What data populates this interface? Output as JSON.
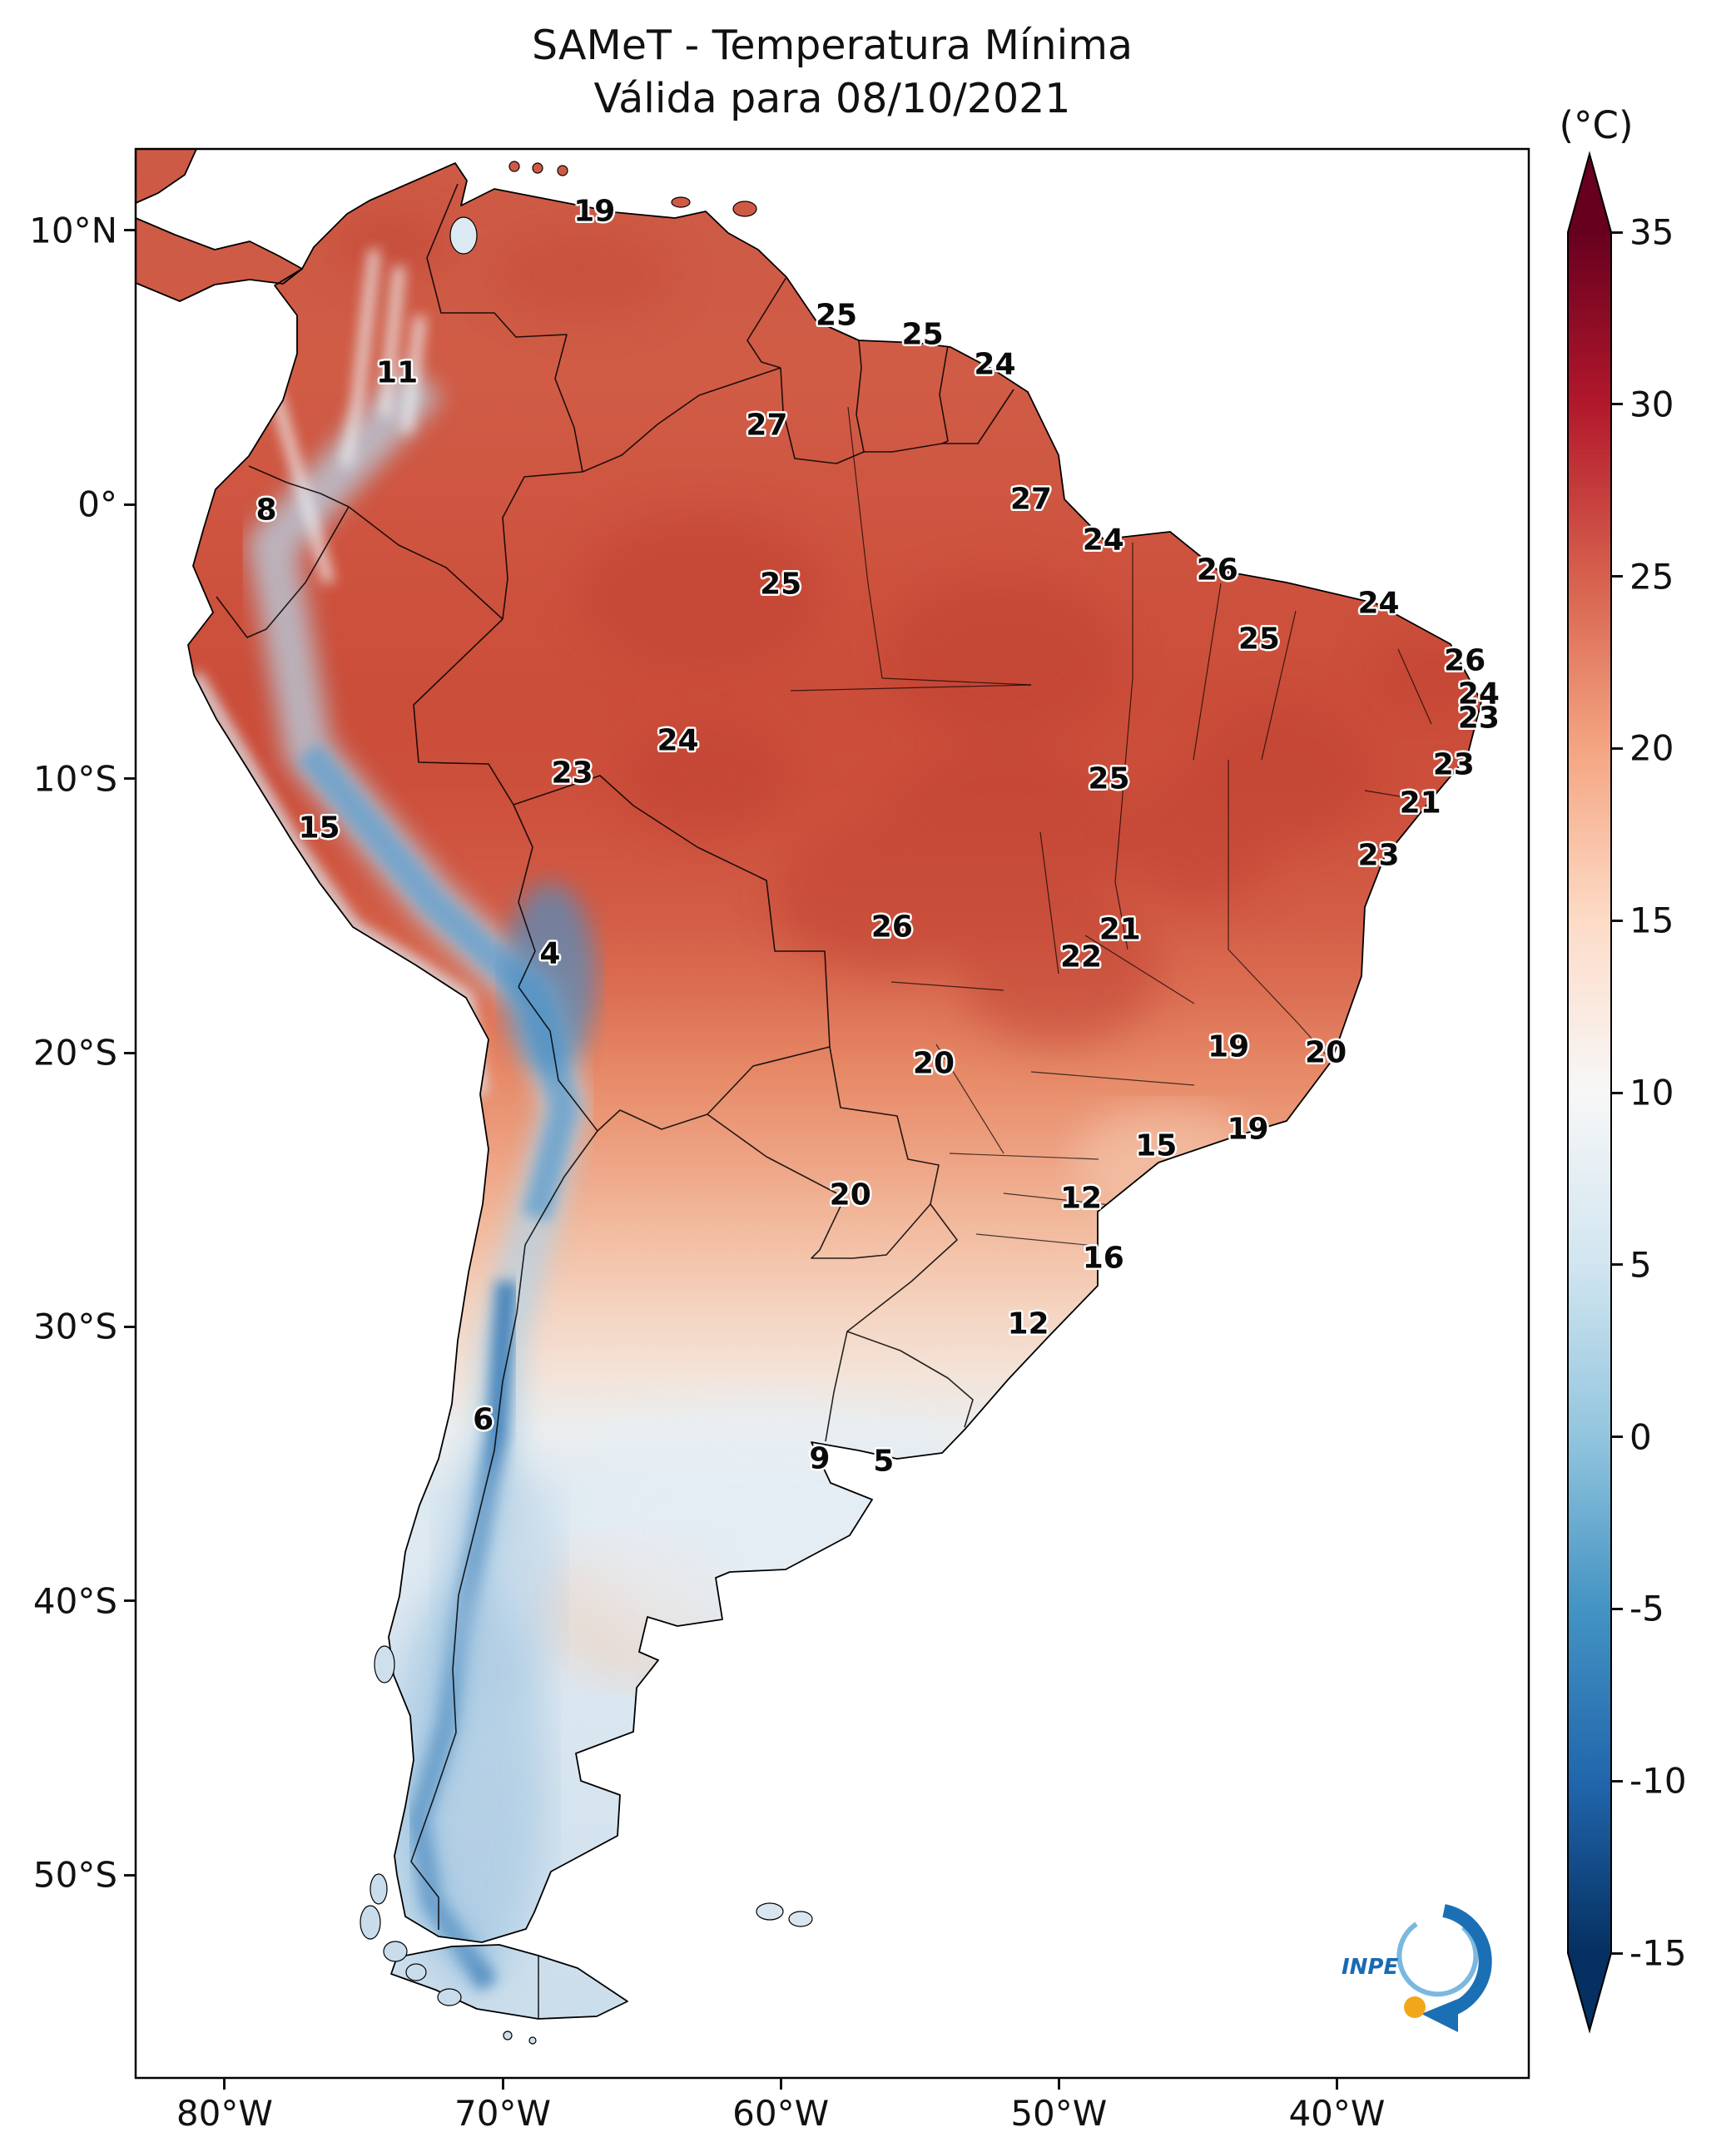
{
  "title": {
    "line1": "SAMeT - Temperatura Mínima",
    "line2": "Válida para 08/10/2021"
  },
  "colorbar": {
    "unit": "(°C)",
    "vmin": -15,
    "vmax": 35,
    "ticks": [
      35,
      30,
      25,
      20,
      15,
      10,
      5,
      0,
      -5,
      -10,
      -15
    ],
    "colors_top_to_bottom": [
      "#67001f",
      "#b2182b",
      "#d6604d",
      "#f4a582",
      "#fddbc7",
      "#f7f7f7",
      "#d1e5f0",
      "#92c5de",
      "#4393c3",
      "#2166ac",
      "#053061"
    ]
  },
  "axes": {
    "lon_range": [
      -83.2,
      -33.1
    ],
    "lat_range": [
      12.97,
      -57.4
    ],
    "x_ticks": [
      {
        "label": "80°W",
        "lon": -80
      },
      {
        "label": "70°W",
        "lon": -70
      },
      {
        "label": "60°W",
        "lon": -60
      },
      {
        "label": "50°W",
        "lon": -50
      },
      {
        "label": "40°W",
        "lon": -40
      }
    ],
    "y_ticks": [
      {
        "label": "10°N",
        "lat": 10
      },
      {
        "label": "0°",
        "lat": 0
      },
      {
        "label": "10°S",
        "lat": -10
      },
      {
        "label": "20°S",
        "lat": -20
      },
      {
        "label": "30°S",
        "lat": -30
      },
      {
        "label": "40°S",
        "lat": -40
      },
      {
        "label": "50°S",
        "lat": -50
      }
    ]
  },
  "chart_data": {
    "type": "heatmap",
    "title": "SAMeT - Temperatura Mínima",
    "subtitle": "Válida para 08/10/2021",
    "units": "°C",
    "region": "South America",
    "colorbar_range": [
      -15,
      35
    ],
    "colorbar_ticks": [
      35,
      30,
      25,
      20,
      15,
      10,
      5,
      0,
      -5,
      -10,
      -15
    ],
    "legend_position": "right",
    "stations": [
      {
        "value": 19,
        "lon": -66.7,
        "lat": 10.7
      },
      {
        "value": 25,
        "lon": -58.0,
        "lat": 6.9
      },
      {
        "value": 25,
        "lon": -54.9,
        "lat": 6.2
      },
      {
        "value": 24,
        "lon": -52.3,
        "lat": 5.1
      },
      {
        "value": 11,
        "lon": -73.8,
        "lat": 4.8
      },
      {
        "value": 27,
        "lon": -60.5,
        "lat": 2.9
      },
      {
        "value": 8,
        "lon": -78.5,
        "lat": -0.2
      },
      {
        "value": 27,
        "lon": -51.0,
        "lat": 0.2
      },
      {
        "value": 24,
        "lon": -48.4,
        "lat": -1.3
      },
      {
        "value": 26,
        "lon": -44.3,
        "lat": -2.4
      },
      {
        "value": 25,
        "lon": -60.0,
        "lat": -2.9
      },
      {
        "value": 25,
        "lon": -42.8,
        "lat": -4.9
      },
      {
        "value": 24,
        "lon": -38.5,
        "lat": -3.6
      },
      {
        "value": 26,
        "lon": -35.4,
        "lat": -5.7
      },
      {
        "value": 24,
        "lon": -34.9,
        "lat": -6.9
      },
      {
        "value": 23,
        "lon": -34.9,
        "lat": -7.8
      },
      {
        "value": 24,
        "lon": -63.7,
        "lat": -8.6
      },
      {
        "value": 23,
        "lon": -67.5,
        "lat": -9.8
      },
      {
        "value": 25,
        "lon": -48.2,
        "lat": -10.0
      },
      {
        "value": 23,
        "lon": -35.8,
        "lat": -9.5
      },
      {
        "value": 21,
        "lon": -37.0,
        "lat": -10.9
      },
      {
        "value": 15,
        "lon": -76.6,
        "lat": -11.8
      },
      {
        "value": 23,
        "lon": -38.5,
        "lat": -12.8
      },
      {
        "value": 26,
        "lon": -56.0,
        "lat": -15.4
      },
      {
        "value": 21,
        "lon": -47.8,
        "lat": -15.5
      },
      {
        "value": 22,
        "lon": -49.2,
        "lat": -16.5
      },
      {
        "value": 4,
        "lon": -68.3,
        "lat": -16.4
      },
      {
        "value": 20,
        "lon": -54.5,
        "lat": -20.4
      },
      {
        "value": 19,
        "lon": -43.9,
        "lat": -19.8
      },
      {
        "value": 20,
        "lon": -40.4,
        "lat": -20.0
      },
      {
        "value": 15,
        "lon": -46.5,
        "lat": -23.4
      },
      {
        "value": 19,
        "lon": -43.2,
        "lat": -22.8
      },
      {
        "value": 20,
        "lon": -57.5,
        "lat": -25.2
      },
      {
        "value": 12,
        "lon": -49.2,
        "lat": -25.3
      },
      {
        "value": 16,
        "lon": -48.4,
        "lat": -27.5
      },
      {
        "value": 12,
        "lon": -51.1,
        "lat": -29.9
      },
      {
        "value": 6,
        "lon": -70.7,
        "lat": -33.4
      },
      {
        "value": 9,
        "lon": -58.6,
        "lat": -34.8
      },
      {
        "value": 5,
        "lon": -56.3,
        "lat": -34.9
      }
    ]
  },
  "logo": {
    "text": "INPE"
  }
}
